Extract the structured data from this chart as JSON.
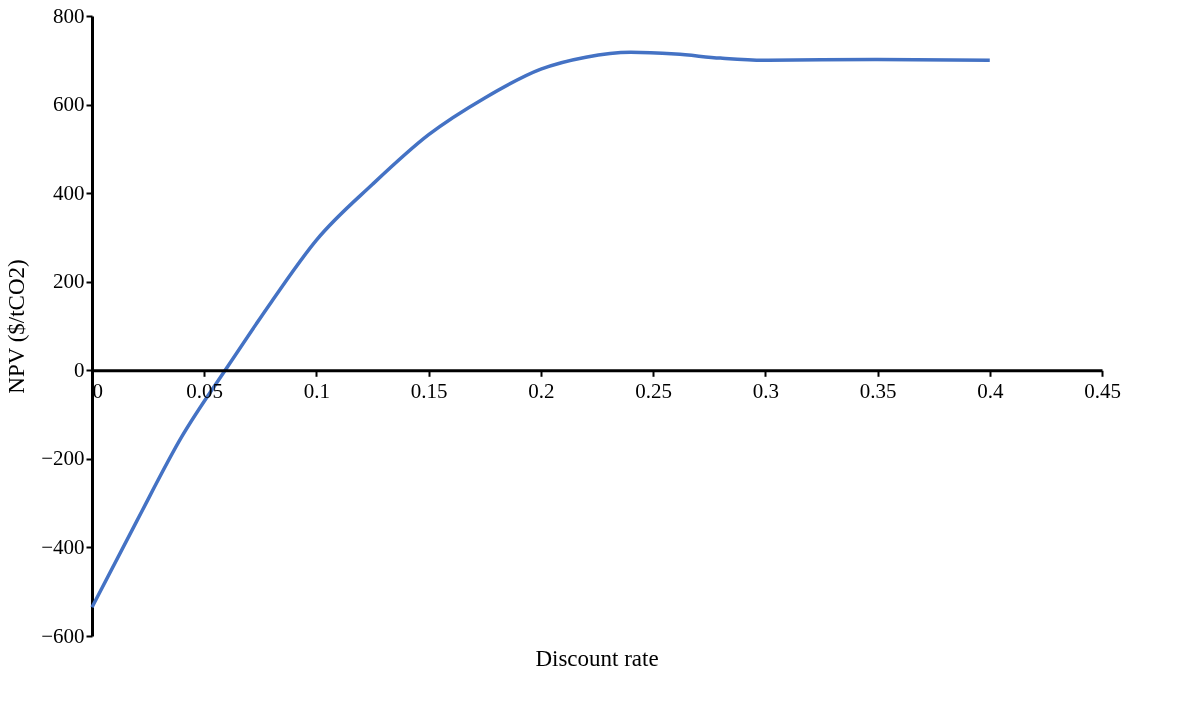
{
  "chart_data": {
    "type": "line",
    "xlabel": "Discount rate",
    "ylabel": "NPV ($/tCO2)",
    "x": [
      0,
      0.02,
      0.04,
      0.06,
      0.08,
      0.1,
      0.125,
      0.15,
      0.175,
      0.2,
      0.22,
      0.24,
      0.26,
      0.28,
      0.3,
      0.35,
      0.4
    ],
    "series": [
      {
        "color": "#4472c4",
        "values": [
          -535,
          -340,
          -150,
          5,
          155,
          294,
          420,
          532,
          615,
          680,
          707,
          718,
          714,
          705,
          700,
          702,
          700
        ]
      }
    ],
    "xlim": [
      0,
      0.45
    ],
    "xticks": [
      0,
      0.05,
      0.1,
      0.15,
      0.2,
      0.25,
      0.3,
      0.35,
      0.4,
      0.45
    ],
    "ylim": [
      -600,
      800
    ],
    "yticks": [
      -600,
      -400,
      -200,
      0,
      200,
      400,
      600,
      800
    ],
    "grid": false,
    "legend": false,
    "marker": "none",
    "line_style": "solid"
  }
}
